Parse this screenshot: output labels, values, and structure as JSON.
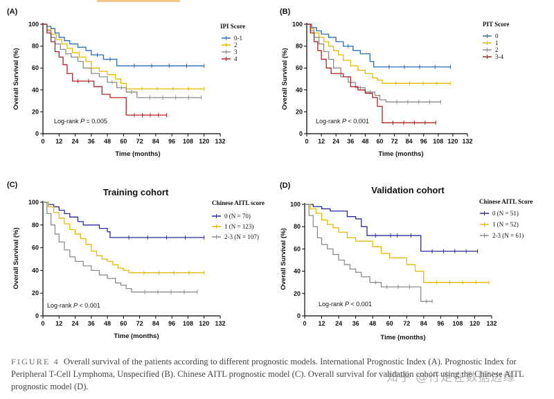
{
  "figure_caption": {
    "label": "FIGURE 4",
    "text": "Overall survival of the patients according to different prognostic models. International Prognostic Index (A). Prognostic Index for Peripheral T-Cell Lymphoma, Unspecified (B). Chinese AITL prognostic model (C). Overall survival for validation cohort using the Chinese AITL prognostic model (D)."
  },
  "watermark": "知乎 @行走在数据边缘",
  "chart_data": [
    {
      "type": "line",
      "panel_label": "(A)",
      "title": "",
      "xlabel": "Time (months)",
      "ylabel": "Overall Survival (%)",
      "xticks": [
        0,
        12,
        24,
        36,
        48,
        60,
        72,
        84,
        96,
        108,
        120,
        132
      ],
      "yticks": [
        0,
        20,
        40,
        60,
        80,
        100
      ],
      "xlim": [
        0,
        132
      ],
      "ylim": [
        0,
        100
      ],
      "legend_title": "IPI Score",
      "annotation_prefix": "Log-rank ",
      "annotation_p": "P",
      "annotation_value": " = 0.005",
      "series": [
        {
          "name": "0-1",
          "color": "#2a6db5",
          "x": [
            0,
            3,
            6,
            9,
            12,
            16,
            20,
            26,
            32,
            36,
            45,
            55,
            120
          ],
          "y": [
            100,
            98,
            96,
            92,
            88,
            85,
            82,
            79,
            76,
            72,
            68,
            62,
            62
          ]
        },
        {
          "name": "2",
          "color": "#e6b800",
          "x": [
            0,
            3,
            6,
            10,
            14,
            18,
            22,
            27,
            32,
            36,
            42,
            48,
            54,
            58,
            62,
            120
          ],
          "y": [
            100,
            95,
            91,
            86,
            82,
            78,
            74,
            70,
            66,
            60,
            57,
            54,
            50,
            46,
            41,
            41
          ]
        },
        {
          "name": "3",
          "color": "#8c8c8c",
          "x": [
            0,
            3,
            6,
            9,
            13,
            17,
            21,
            26,
            30,
            36,
            42,
            48,
            55,
            62,
            70,
            118
          ],
          "y": [
            100,
            94,
            88,
            82,
            77,
            73,
            70,
            66,
            60,
            55,
            52,
            47,
            42,
            38,
            33,
            33
          ]
        },
        {
          "name": "4",
          "color": "#b22222",
          "x": [
            0,
            3,
            6,
            9,
            12,
            15,
            18,
            22,
            30,
            38,
            44,
            50,
            56,
            60,
            62,
            92
          ],
          "y": [
            100,
            92,
            84,
            75,
            70,
            63,
            55,
            48,
            48,
            43,
            36,
            33,
            33,
            33,
            17,
            17
          ]
        }
      ]
    },
    {
      "type": "line",
      "panel_label": "(B)",
      "title": "",
      "xlabel": "Time (months)",
      "ylabel": "Overall Survival (%)",
      "xticks": [
        0,
        12,
        24,
        36,
        48,
        60,
        72,
        84,
        96,
        108,
        120,
        132
      ],
      "yticks": [
        0,
        20,
        40,
        60,
        80,
        100
      ],
      "xlim": [
        0,
        132
      ],
      "ylim": [
        0,
        100
      ],
      "legend_title": "PIT Score",
      "annotation_prefix": "Log-rank ",
      "annotation_p": "P",
      "annotation_value": " < 0.001",
      "series": [
        {
          "name": "0",
          "color": "#2a6db5",
          "x": [
            0,
            4,
            8,
            12,
            18,
            24,
            30,
            38,
            44,
            50,
            52,
            55,
            118
          ],
          "y": [
            100,
            97,
            94,
            91,
            88,
            84,
            80,
            76,
            73,
            73,
            66,
            61,
            61
          ]
        },
        {
          "name": "1",
          "color": "#e6b800",
          "x": [
            0,
            3,
            6,
            10,
            14,
            18,
            22,
            26,
            30,
            36,
            42,
            48,
            54,
            58,
            62,
            118
          ],
          "y": [
            100,
            96,
            92,
            88,
            84,
            80,
            76,
            72,
            67,
            62,
            58,
            55,
            51,
            49,
            46,
            46
          ]
        },
        {
          "name": "2",
          "color": "#8c8c8c",
          "x": [
            0,
            3,
            6,
            10,
            14,
            18,
            22,
            28,
            34,
            40,
            48,
            56,
            60,
            65,
            110
          ],
          "y": [
            100,
            94,
            88,
            82,
            75,
            68,
            60,
            52,
            47,
            42,
            38,
            35,
            31,
            29,
            29
          ]
        },
        {
          "name": "3-4",
          "color": "#b22222",
          "x": [
            0,
            3,
            6,
            9,
            12,
            16,
            20,
            24,
            30,
            36,
            42,
            48,
            54,
            58,
            62,
            106
          ],
          "y": [
            100,
            92,
            84,
            76,
            68,
            60,
            55,
            55,
            52,
            43,
            40,
            37,
            33,
            25,
            10,
            10
          ]
        }
      ]
    },
    {
      "type": "line",
      "panel_label": "(C)",
      "title": "Training cohort",
      "xlabel": "Time (months)",
      "ylabel": "Overall Survival (%)",
      "xticks": [
        0,
        12,
        24,
        36,
        48,
        60,
        72,
        84,
        96,
        108,
        120,
        132
      ],
      "yticks": [
        0,
        20,
        40,
        60,
        80,
        100
      ],
      "xlim": [
        0,
        132
      ],
      "ylim": [
        0,
        100
      ],
      "legend_title": "Chinese AITL score",
      "annotation_prefix": "Log-rank ",
      "annotation_p": "P",
      "annotation_value": " < 0.001",
      "series": [
        {
          "name": "0 (N = 70)",
          "color": "#2b2b9a",
          "x": [
            0,
            4,
            8,
            12,
            16,
            20,
            26,
            30,
            36,
            42,
            46,
            48,
            50,
            120
          ],
          "y": [
            100,
            98,
            96,
            93,
            90,
            87,
            83,
            80,
            80,
            77,
            77,
            74,
            69,
            69
          ]
        },
        {
          "name": "1 (N = 123)",
          "color": "#e6b800",
          "x": [
            0,
            4,
            8,
            12,
            16,
            20,
            24,
            28,
            32,
            36,
            40,
            44,
            48,
            52,
            56,
            60,
            64,
            120
          ],
          "y": [
            100,
            96,
            91,
            86,
            81,
            76,
            72,
            68,
            63,
            57,
            53,
            50,
            48,
            45,
            42,
            40,
            38,
            38
          ]
        },
        {
          "name": "2-3 (N = 107)",
          "color": "#8c8c8c",
          "x": [
            0,
            3,
            6,
            9,
            12,
            16,
            20,
            24,
            30,
            36,
            42,
            48,
            54,
            58,
            62,
            66,
            115
          ],
          "y": [
            100,
            90,
            80,
            72,
            65,
            58,
            52,
            48,
            44,
            40,
            36,
            33,
            29,
            27,
            24,
            21,
            21
          ]
        }
      ]
    },
    {
      "type": "line",
      "panel_label": "(D)",
      "title": "Validation cohort",
      "xlabel": "Time (months)",
      "ylabel": "Overall Survival (%)",
      "xticks": [
        0,
        12,
        24,
        36,
        48,
        60,
        72,
        84,
        96,
        108,
        120,
        132
      ],
      "yticks": [
        0,
        20,
        40,
        60,
        80,
        100
      ],
      "xlim": [
        0,
        132
      ],
      "ylim": [
        0,
        100
      ],
      "legend_title": "Chinese AITL  Score",
      "annotation_prefix": "Log-rank ",
      "annotation_p": "P",
      "annotation_value": " < 0.001",
      "series": [
        {
          "name": "0 (N = 51)",
          "color": "#2b2b9a",
          "x": [
            0,
            6,
            12,
            18,
            24,
            30,
            36,
            40,
            44,
            56,
            70,
            80,
            82,
            122
          ],
          "y": [
            100,
            98,
            96,
            94,
            94,
            89,
            87,
            80,
            72,
            72,
            72,
            72,
            58,
            58
          ]
        },
        {
          "name": "1 (N = 52)",
          "color": "#e6b800",
          "x": [
            0,
            4,
            8,
            12,
            16,
            20,
            24,
            30,
            36,
            42,
            48,
            54,
            60,
            66,
            72,
            78,
            84,
            130
          ],
          "y": [
            100,
            96,
            92,
            86,
            82,
            79,
            75,
            70,
            67,
            67,
            62,
            56,
            52,
            52,
            46,
            40,
            30,
            30
          ]
        },
        {
          "name": "2-3 (N = 61)",
          "color": "#8c8c8c",
          "x": [
            0,
            3,
            6,
            9,
            12,
            16,
            20,
            24,
            28,
            32,
            36,
            40,
            46,
            54,
            62,
            70,
            78,
            82,
            90
          ],
          "y": [
            100,
            90,
            80,
            70,
            64,
            60,
            55,
            50,
            46,
            42,
            39,
            35,
            30,
            26,
            26,
            26,
            26,
            13,
            13
          ]
        }
      ]
    }
  ]
}
